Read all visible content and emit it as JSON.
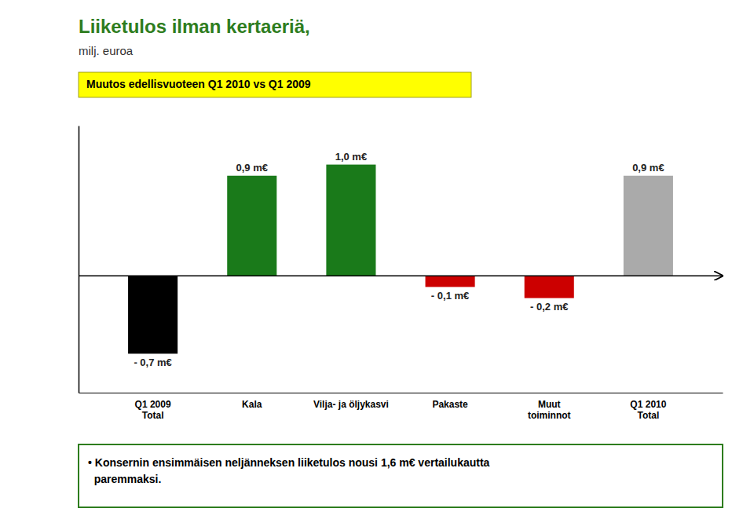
{
  "chart_data": {
    "type": "bar",
    "title": "Liiketulos ilman kertaeriä,",
    "subtitle": "milj. euroa",
    "annotations": [
      "Muutos edellisvuoteen Q1 2010 vs Q1 2009",
      "• Konsernin ensimmäisen neljänneksen liiketulos nousi 1,6 m€ vertailukautta\n  paremmaksi."
    ],
    "categories": [
      "Q1 2009\nTotal",
      "Kala",
      "Vilja- ja öljykasvi",
      "Pakaste",
      "Muut\ntoiminnot",
      "Q1 2010\nTotal"
    ],
    "values": [
      -0.7,
      0.9,
      1.0,
      -0.1,
      -0.2,
      0.9
    ],
    "value_labels": [
      "- 0,7 m€",
      "0,9 m€",
      "1,0 m€",
      "- 0,1 m€",
      "- 0,2 m€",
      "0,9 m€"
    ],
    "colors": [
      "#000000",
      "#1a7a1a",
      "#1a7a1a",
      "#cc0000",
      "#cc0000",
      "#aaaaaa"
    ],
    "ylim": [
      -1.05,
      1.35
    ],
    "tick_labels": "x"
  }
}
